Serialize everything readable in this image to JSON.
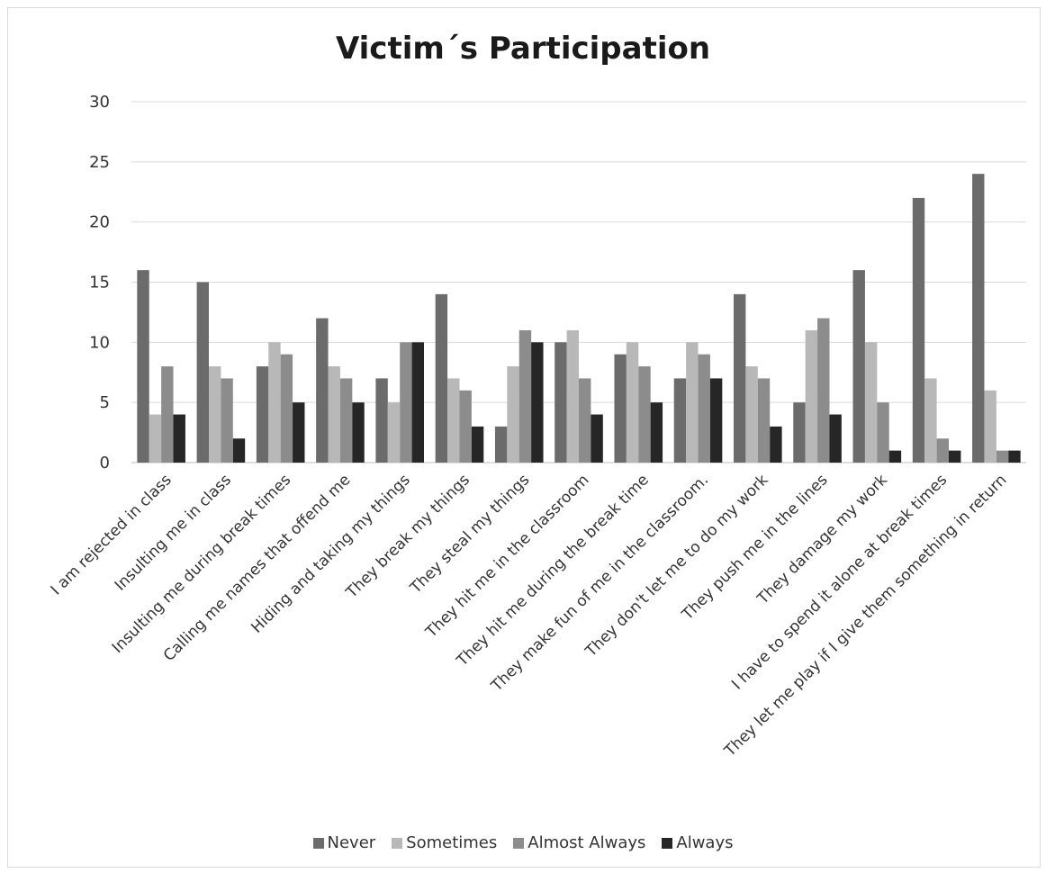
{
  "chart_data": {
    "type": "bar",
    "title": "Victim´s Participation",
    "xlabel": "",
    "ylabel": "",
    "ylim": [
      0,
      30
    ],
    "yticks": [
      0,
      5,
      10,
      15,
      20,
      25,
      30
    ],
    "grid": true,
    "legend_position": "bottom",
    "categories": [
      "I am rejected in class",
      "Insulting me in class",
      "Insulting me during break times",
      "Calling me names that offend me",
      "Hiding and taking my things",
      "They break my things",
      "They steal my things",
      "They hit me in the classroom",
      "They hit me during the break time",
      "They make fun of me in the classroom.",
      "They don't let me to do my work",
      "They push me in the lines",
      "They damage my work",
      "I have to spend it alone at break times",
      "They let me play if I give them something in return"
    ],
    "series": [
      {
        "name": "Never",
        "color": "#6b6b6b",
        "values": [
          16,
          15,
          8,
          12,
          7,
          14,
          3,
          10,
          9,
          7,
          14,
          5,
          16,
          22,
          24
        ]
      },
      {
        "name": "Sometimes",
        "color": "#b8b8b8",
        "values": [
          4,
          8,
          10,
          8,
          5,
          7,
          8,
          11,
          10,
          10,
          8,
          11,
          10,
          7,
          6
        ]
      },
      {
        "name": "Almost Always",
        "color": "#8c8c8c",
        "values": [
          8,
          7,
          9,
          7,
          10,
          6,
          11,
          7,
          8,
          9,
          7,
          12,
          5,
          2,
          1
        ]
      },
      {
        "name": "Always",
        "color": "#262626",
        "values": [
          4,
          2,
          5,
          5,
          10,
          3,
          10,
          4,
          5,
          7,
          3,
          4,
          1,
          1,
          1
        ]
      }
    ]
  }
}
